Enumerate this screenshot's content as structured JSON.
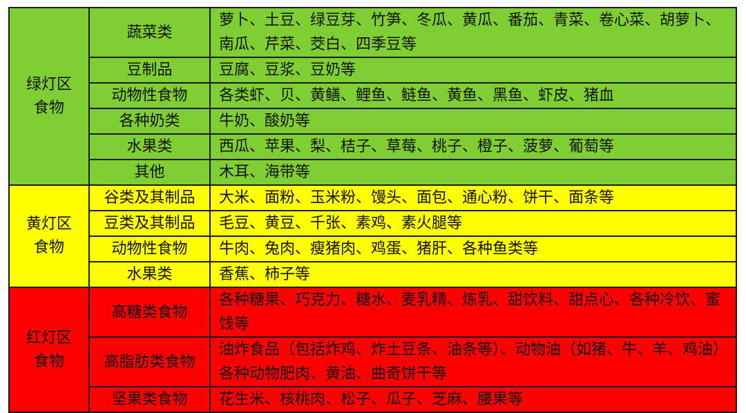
{
  "colors": {
    "green": "#7fcf34",
    "yellow": "#ffff00",
    "red": "#ff0000"
  },
  "zones": [
    {
      "name_line1": "绿灯区",
      "name_line2": "食物",
      "rows": [
        {
          "category": "蔬菜类",
          "items": "萝卜、土豆、绿豆芽、竹笋、冬瓜、黄瓜、番茄、青菜、卷心菜、胡萝卜、南瓜、芹菜、茭白、四季豆等"
        },
        {
          "category": "豆制品",
          "items": "豆腐、豆浆、豆奶等"
        },
        {
          "category": "动物性食物",
          "items": "各类虾、贝、黄鳝、鲤鱼、鲢鱼、黄鱼、黑鱼、虾皮、猪血"
        },
        {
          "category": "各种奶类",
          "items": "牛奶、酸奶等"
        },
        {
          "category": "水果类",
          "items": "西瓜、苹果、梨、桔子、草莓、桃子、橙子、菠萝、葡萄等"
        },
        {
          "category": "其他",
          "items": "木耳、海带等"
        }
      ]
    },
    {
      "name_line1": "黄灯区",
      "name_line2": "食物",
      "rows": [
        {
          "category": "谷类及其制品",
          "items": "大米、面粉、玉米粉、馒头、面包、通心粉、饼干、面条等"
        },
        {
          "category": "豆类及其制品",
          "items": "毛豆、黄豆、千张、素鸡、素火腿等"
        },
        {
          "category": "动物性食物",
          "items": "牛肉、兔肉、瘦猪肉、鸡蛋、猪肝、各种鱼类等"
        },
        {
          "category": "水果类",
          "items": "香蕉、柿子等"
        }
      ]
    },
    {
      "name_line1": "红灯区",
      "name_line2": "食物",
      "rows": [
        {
          "category": "高糖类食物",
          "items": "各种糖果、巧克力、糖水、麦乳精、炼乳、甜饮料、甜点心、各种冷饮、蜜饯等"
        },
        {
          "category": "高脂肪类食物",
          "items": "油炸食品（包括炸鸡、炸土豆条、油条等）、动物油（如猪、牛、羊、鸡油）各种动物肥肉、黄油、曲奇饼干等"
        },
        {
          "category": "坚果类食物",
          "items": "花生米、核桃肉、松子、瓜子、芝麻、腰果等"
        }
      ]
    }
  ]
}
